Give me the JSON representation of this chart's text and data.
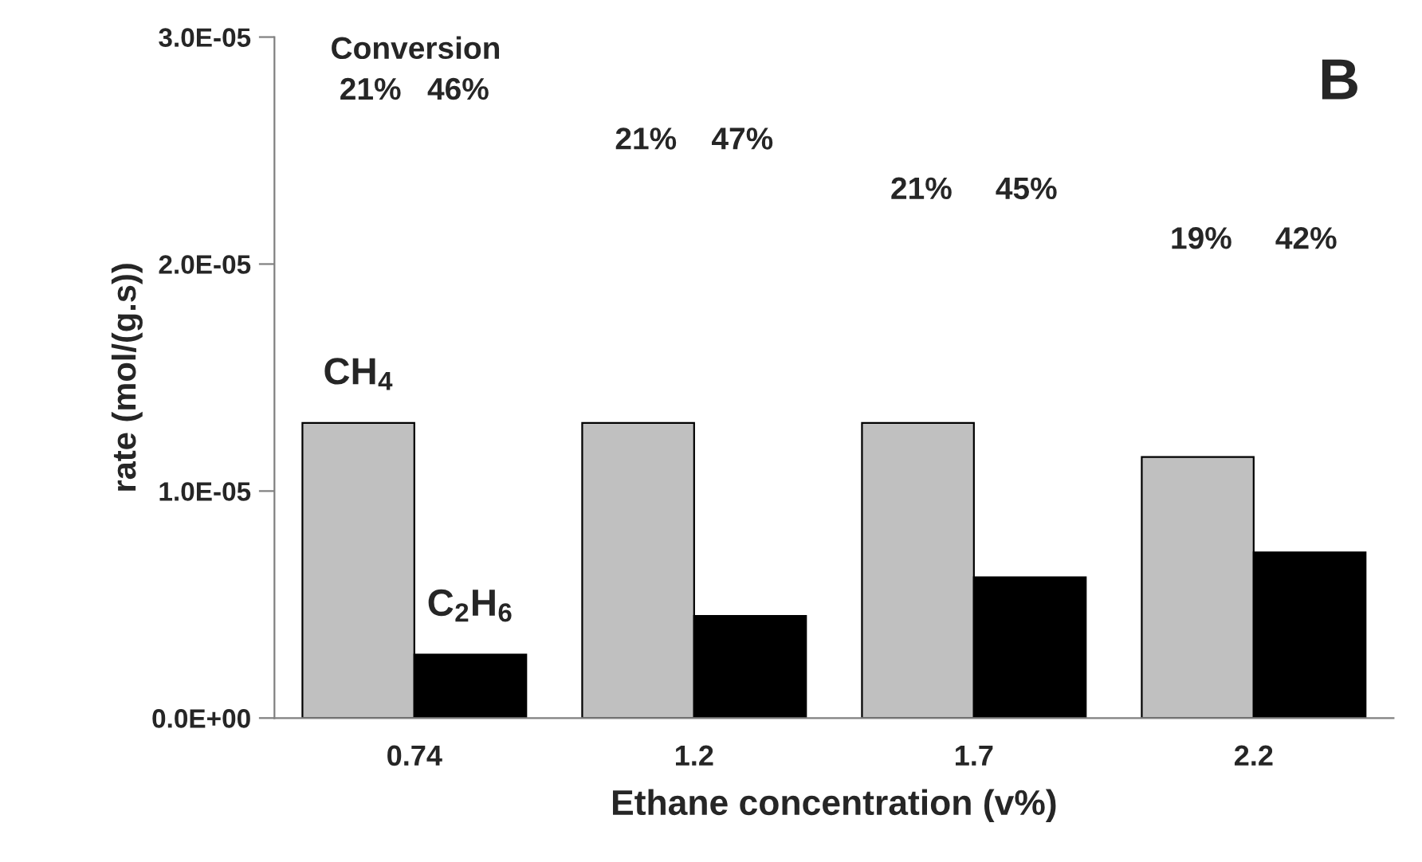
{
  "chart_data": {
    "type": "bar",
    "xlabel": "Ethane concentration (v%)",
    "ylabel": "rate (mol/(g.s))",
    "categories": [
      "0.74",
      "1.2",
      "1.7",
      "2.2"
    ],
    "series": [
      {
        "name": "CH$_{4}$",
        "color": "#c0c0c0",
        "values": [
          1.3e-05,
          1.3e-05,
          1.3e-05,
          1.15e-05
        ]
      },
      {
        "name": "C$_{2}$H$_{6}$",
        "color": "#000000",
        "values": [
          2.8e-06,
          4.5e-06,
          6.2e-06,
          7.3e-06
        ]
      }
    ],
    "ylim": [
      0,
      3e-05
    ],
    "yticks": [
      {
        "value": 0,
        "label": "0.0E+00"
      },
      {
        "value": 1e-05,
        "label": "1.0E-05"
      },
      {
        "value": 2e-05,
        "label": "2.0E-05"
      },
      {
        "value": 3e-05,
        "label": "3.0E-05"
      }
    ],
    "annotations": [
      "Conversion",
      "21%   46%",
      "21%    47%",
      "21%     45%",
      "19%     42%",
      "B"
    ],
    "grid": false,
    "legend": false
  }
}
